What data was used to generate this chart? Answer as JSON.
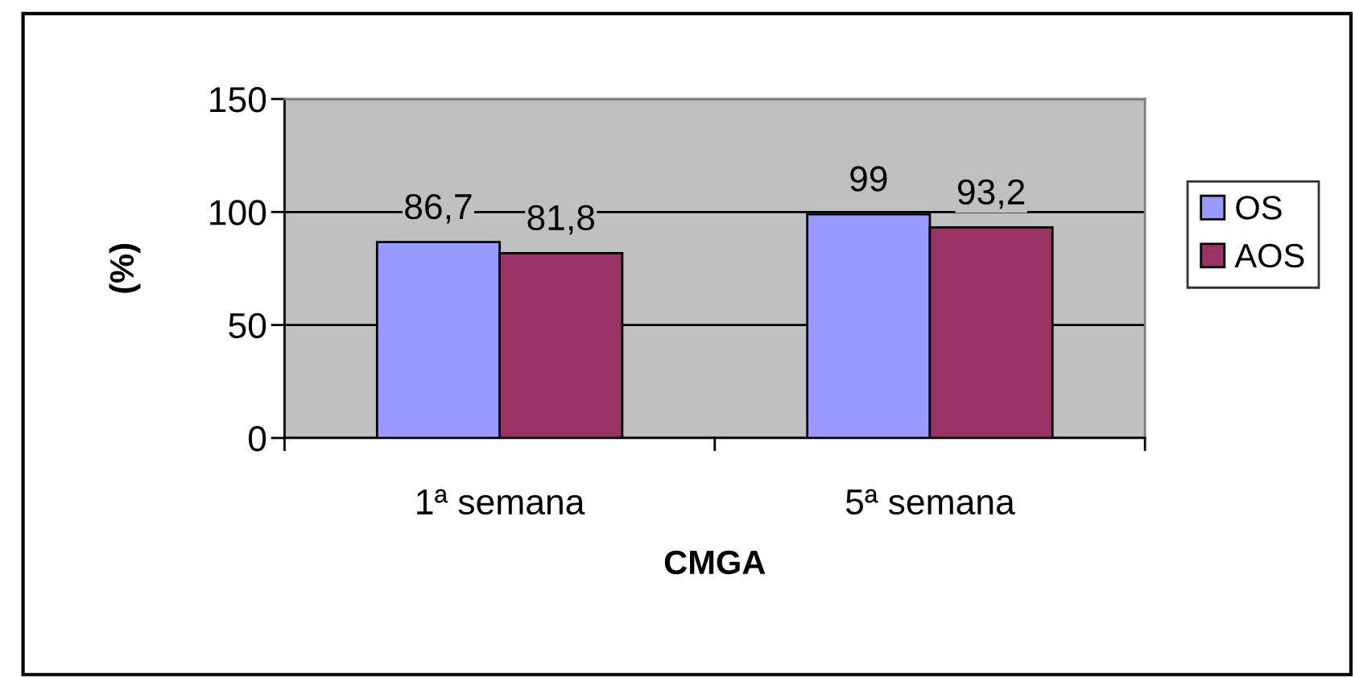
{
  "chart_data": {
    "type": "bar",
    "xlabel": "CMGA",
    "ylabel": "(%)",
    "categories": [
      "1ª semana",
      "5ª semana"
    ],
    "series": [
      {
        "name": "OS",
        "color": "#9999ff",
        "values": [
          86.7,
          99
        ],
        "value_labels": [
          "86,7",
          "99"
        ]
      },
      {
        "name": "AOS",
        "color": "#993366",
        "values": [
          81.8,
          93.2
        ],
        "value_labels": [
          "81,8",
          "93,2"
        ]
      }
    ],
    "ylim": [
      0,
      150
    ],
    "yticks": [
      0,
      50,
      100,
      150
    ],
    "grid": "y",
    "legend": "right"
  }
}
